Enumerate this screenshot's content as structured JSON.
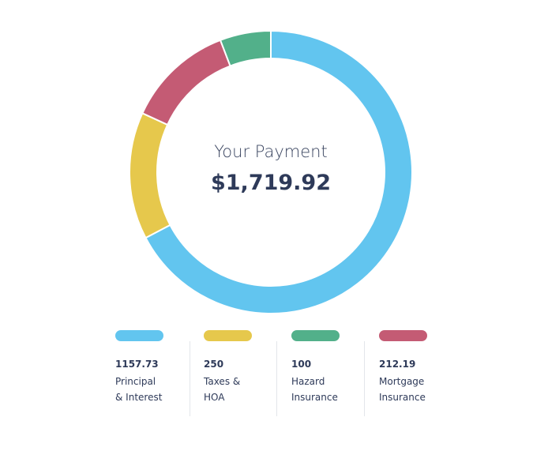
{
  "chart_data": {
    "type": "donut",
    "center_label": "Your Payment",
    "total_label": "$1,719.92",
    "slices": [
      {
        "name": [
          "Principal",
          "& Interest"
        ],
        "value": 1157.73,
        "color": "#62c5ef"
      },
      {
        "name": [
          "Taxes &",
          "HOA"
        ],
        "value": 250,
        "color": "#e6c84c"
      },
      {
        "name": [
          "Mortgage",
          "Insurance"
        ],
        "value": 212.19,
        "color": "#c45b74"
      },
      {
        "name": [
          "Hazard",
          "Insurance"
        ],
        "value": 100,
        "color": "#52b08a"
      }
    ]
  }
}
